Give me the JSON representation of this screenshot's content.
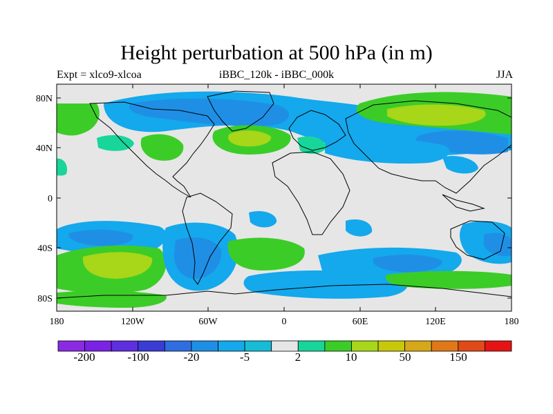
{
  "title": "Height perturbation at 500 hPa (in m)",
  "subtitle_left": "Expt = xlco9-xlcoa",
  "subtitle_center": "iBBC_120k - iBBC_000k",
  "subtitle_right": "JJA",
  "lat_ticks": [
    "80N",
    "40N",
    "0",
    "40S",
    "80S"
  ],
  "lon_ticks": [
    "180",
    "120W",
    "60W",
    "0",
    "60E",
    "120E",
    "180"
  ],
  "colorbar": {
    "colors": [
      "#8a2be2",
      "#7a22e6",
      "#5e2ee0",
      "#3a3cd6",
      "#2e6ee0",
      "#1f8fe6",
      "#14a8ec",
      "#16bcd6",
      "#e6e6e6",
      "#18d69a",
      "#3ccc28",
      "#a8d618",
      "#c8c80a",
      "#d6a818",
      "#e07818",
      "#e04a18",
      "#e61414"
    ],
    "labels": [
      "-200",
      "-100",
      "-20",
      "-5",
      "2",
      "10",
      "50",
      "150"
    ]
  }
}
